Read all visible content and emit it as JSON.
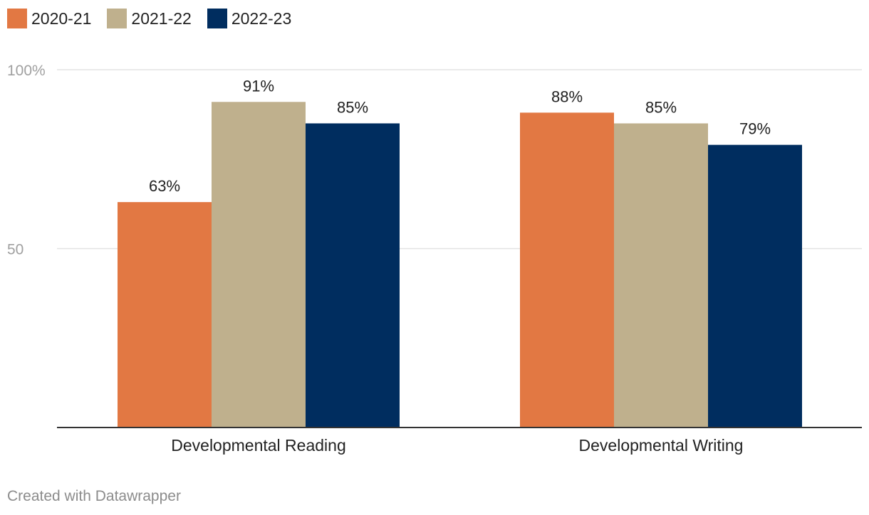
{
  "chart_data": {
    "type": "bar",
    "categories": [
      "Developmental Reading",
      "Developmental Writing"
    ],
    "series": [
      {
        "name": "2020-21",
        "values": [
          63,
          88
        ],
        "color": "#e27843"
      },
      {
        "name": "2021-22",
        "values": [
          91,
          85
        ],
        "color": "#bfb08d"
      },
      {
        "name": "2022-23",
        "values": [
          85,
          79
        ],
        "color": "#002d5f"
      }
    ],
    "value_labels": [
      [
        "63%",
        "88%"
      ],
      [
        "91%",
        "85%"
      ],
      [
        "85%",
        "79%"
      ]
    ],
    "yticks": [
      {
        "value": 100,
        "label": "100%"
      },
      {
        "value": 50,
        "label": "50"
      }
    ],
    "ylim": [
      0,
      100
    ],
    "grid": true,
    "legend": "top-left"
  },
  "footer": {
    "credit": "Created with Datawrapper"
  }
}
